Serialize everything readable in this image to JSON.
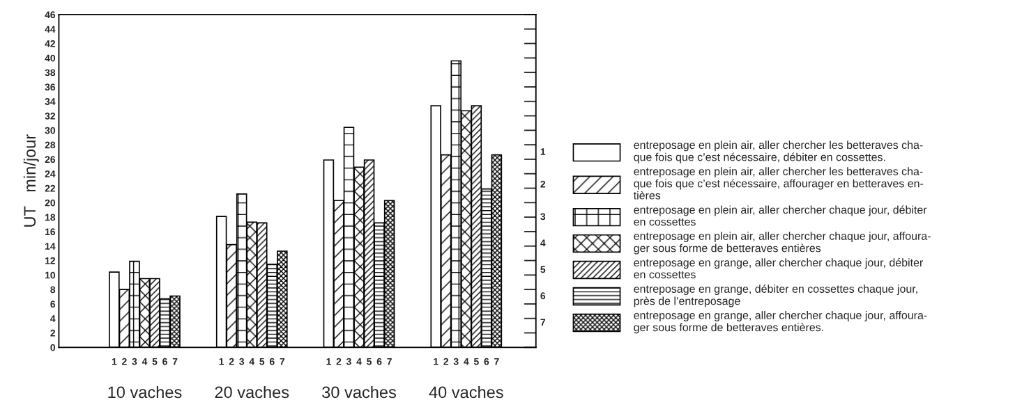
{
  "chart_data": {
    "type": "bar",
    "ylabel": "UT   min/jour",
    "categories": [
      "10 vaches",
      "20 vaches",
      "30 vaches",
      "40 vaches"
    ],
    "annotations": [
      "1",
      "2",
      "3",
      "4",
      "5",
      "6",
      "7"
    ],
    "series": [
      {
        "name": "entreposage en plein air, aller chercher les betteraves cha-\nque fois que c’est nécessaire, débiter en cossettes.",
        "color": "#ffffff",
        "values": [
          10.4,
          18.1,
          25.9,
          33.4
        ]
      },
      {
        "name": "entreposage en plein air, aller chercher les betteraves cha-\nque fois que c’est nécessaire, affourager en betteraves en-\ntières",
        "color": "#000000",
        "values": [
          8.0,
          14.2,
          20.3,
          26.6
        ]
      },
      {
        "name": "entreposage en plein air, aller chercher chaque jour, débiter\nen cossettes",
        "color": "#000000",
        "values": [
          11.9,
          21.2,
          30.4,
          39.6
        ]
      },
      {
        "name": "entreposage en plein air, aller chercher chaque jour, affoura-\nger sous forme de betteraves entières",
        "color": "#000000",
        "values": [
          9.5,
          17.3,
          24.9,
          32.7
        ]
      },
      {
        "name": "entreposage en grange, aller chercher chaque jour, débiter\nen cossettes",
        "color": "#000000",
        "values": [
          9.5,
          17.2,
          25.9,
          33.4
        ]
      },
      {
        "name": "entreposage en grange, débiter en cossettes chaque jour,\nprès de l’entreposage",
        "color": "#000000",
        "values": [
          6.7,
          11.5,
          17.2,
          21.9
        ]
      },
      {
        "name": "entreposage en grange, aller chercher chaque jour, affoura-\nger sous forme de betteraves entières.",
        "color": "#000000",
        "values": [
          7.1,
          13.3,
          20.3,
          26.6
        ]
      }
    ],
    "ylim": [
      0,
      46
    ],
    "yticks": [
      0,
      2,
      4,
      6,
      8,
      10,
      12,
      14,
      16,
      18,
      20,
      22,
      24,
      26,
      28,
      30,
      32,
      34,
      36,
      38,
      40,
      42,
      44,
      46
    ],
    "grid": false,
    "legend": "right"
  }
}
